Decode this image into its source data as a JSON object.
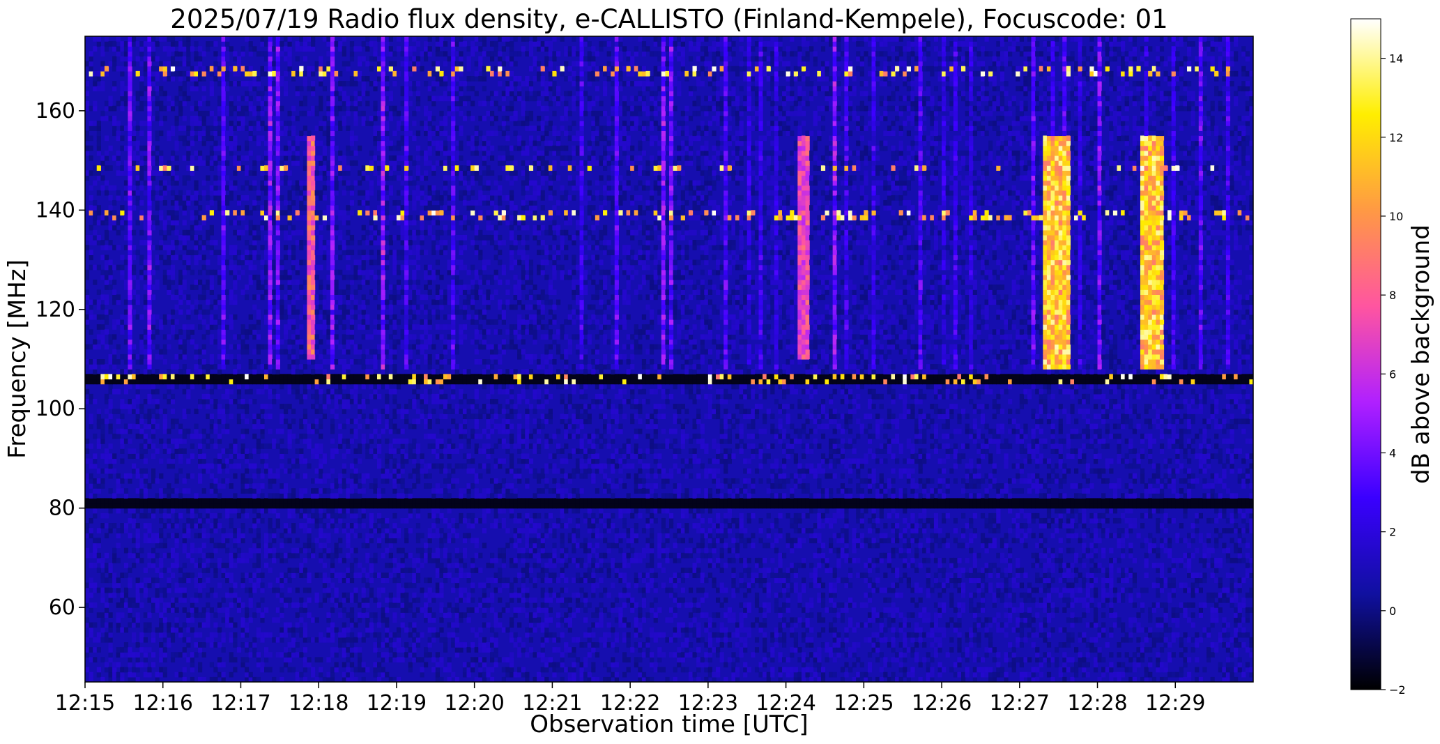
{
  "chart_data": {
    "type": "heatmap",
    "title": "2025/07/19  Radio flux density, e-CALLISTO (Finland-Kempele), Focuscode: 01",
    "xlabel": "Observation time [UTC]",
    "ylabel": "Frequency [MHz]",
    "colorbar_label": "dB above background",
    "x_range_min": [
      15,
      30
    ],
    "x_ticks": [
      "12:15",
      "12:16",
      "12:17",
      "12:18",
      "12:19",
      "12:20",
      "12:21",
      "12:22",
      "12:23",
      "12:24",
      "12:25",
      "12:26",
      "12:27",
      "12:28",
      "12:29"
    ],
    "ylim": [
      45,
      175
    ],
    "y_ticks": [
      60,
      80,
      100,
      120,
      140,
      160
    ],
    "clim": [
      -2,
      15
    ],
    "colorbar_ticks": [
      -2,
      0,
      2,
      4,
      6,
      8,
      10,
      12,
      14
    ],
    "colormap": "gnuplot2",
    "colormap_stops": [
      "#000000",
      "#1010a0",
      "#3a00ff",
      "#b020ff",
      "#ff55a0",
      "#ff9944",
      "#ffee00",
      "#ffffff"
    ],
    "background_level_db": 0.8,
    "bursts": [
      {
        "start_min": 27.3,
        "end_min": 27.65,
        "f_low": 108,
        "f_high": 155,
        "peak_db": 13
      },
      {
        "start_min": 28.55,
        "end_min": 28.85,
        "f_low": 108,
        "f_high": 155,
        "peak_db": 13
      },
      {
        "start_min": 24.15,
        "end_min": 24.3,
        "f_low": 110,
        "f_high": 155,
        "peak_db": 8
      },
      {
        "start_min": 17.85,
        "end_min": 17.95,
        "f_low": 110,
        "f_high": 155,
        "peak_db": 9
      }
    ],
    "interference_lines_mhz": [
      106,
      139,
      148.5,
      168
    ],
    "quiet_gaps_mhz": [
      81,
      106
    ]
  }
}
